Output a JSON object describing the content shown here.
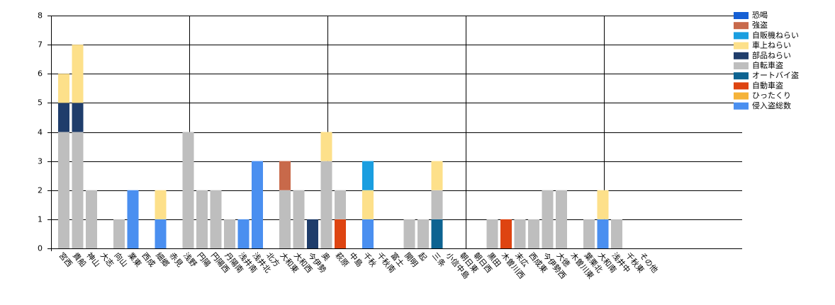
{
  "chart_data": {
    "type": "stacked-bar",
    "categories": [
      "宮西",
      "貴船",
      "神山",
      "大志",
      "向山",
      "業東",
      "西成",
      "細郷",
      "赤見",
      "浅野",
      "円陽",
      "円陽西",
      "丹陽南",
      "浅井南",
      "浅井北",
      "北方",
      "大和東",
      "大和西",
      "今伊勢",
      "奥",
      "萩原",
      "中島",
      "千秋",
      "千秋南",
      "富士",
      "開明",
      "起",
      "三条",
      "小信中島",
      "朝日東",
      "朝日西",
      "黒田",
      "木曽川西",
      "末広",
      "西成東",
      "今伊勢西",
      "大徳",
      "木曽川東",
      "葉栗北",
      "大和南",
      "浅井中",
      "千秋東",
      "その他"
    ],
    "series": [
      {
        "name": "恐喝",
        "color": "#1560d4",
        "values": [
          0,
          0,
          0,
          0,
          0,
          0,
          0,
          0,
          0,
          0,
          0,
          0,
          0,
          0,
          0,
          0,
          0,
          0,
          0,
          0,
          0,
          0,
          0,
          0,
          0,
          0,
          0,
          0,
          0,
          0,
          0,
          0,
          0,
          0,
          0,
          0,
          0,
          0,
          0,
          0,
          0,
          0,
          0
        ]
      },
      {
        "name": "強盗",
        "color": "#c8694a",
        "values": [
          0,
          0,
          0,
          0,
          0,
          0,
          0,
          0,
          0,
          0,
          0,
          0,
          0,
          0,
          0,
          0,
          1,
          0,
          0,
          0,
          0,
          0,
          0,
          0,
          0,
          0,
          0,
          0,
          0,
          0,
          0,
          0,
          0,
          0,
          0,
          0,
          0,
          0,
          0,
          0,
          0,
          0,
          0
        ]
      },
      {
        "name": "自販機ねらい",
        "color": "#1a9ee0",
        "values": [
          0,
          0,
          0,
          0,
          0,
          0,
          0,
          0,
          0,
          0,
          0,
          0,
          0,
          0,
          0,
          0,
          0,
          0,
          0,
          0,
          0,
          0,
          1,
          0,
          0,
          0,
          0,
          0,
          0,
          0,
          0,
          0,
          0,
          0,
          0,
          0,
          0,
          0,
          0,
          0,
          0,
          0,
          0
        ]
      },
      {
        "name": "車上ねらい",
        "color": "#fde08a",
        "values": [
          1,
          2,
          0,
          0,
          0,
          0,
          0,
          1,
          0,
          0,
          0,
          0,
          0,
          0,
          0,
          0,
          0,
          0,
          0,
          1,
          0,
          0,
          1,
          0,
          0,
          0,
          0,
          1,
          0,
          0,
          0,
          0,
          0,
          0,
          0,
          0,
          0,
          0,
          0,
          1,
          0,
          0,
          0
        ]
      },
      {
        "name": "部品ねらい",
        "color": "#1f3d6b",
        "values": [
          1,
          1,
          0,
          0,
          0,
          0,
          0,
          0,
          0,
          0,
          0,
          0,
          0,
          0,
          0,
          0,
          0,
          0,
          1,
          0,
          0,
          0,
          0,
          0,
          0,
          0,
          0,
          0,
          0,
          0,
          0,
          0,
          0,
          0,
          0,
          0,
          0,
          0,
          0,
          0,
          0,
          0,
          0
        ]
      },
      {
        "name": "自転車盗",
        "color": "#bebebe",
        "values": [
          4,
          4,
          2,
          0,
          1,
          0,
          0,
          0,
          0,
          4,
          2,
          2,
          1,
          0,
          0,
          0,
          2,
          2,
          0,
          3,
          1,
          0,
          0,
          0,
          0,
          1,
          1,
          1,
          0,
          0,
          0,
          1,
          0,
          1,
          1,
          2,
          2,
          0,
          1,
          0,
          1,
          0,
          0
        ]
      },
      {
        "name": "オートバイ盗",
        "color": "#0d6391",
        "values": [
          0,
          0,
          0,
          0,
          0,
          0,
          0,
          0,
          0,
          0,
          0,
          0,
          0,
          0,
          0,
          0,
          0,
          0,
          0,
          0,
          0,
          0,
          0,
          0,
          0,
          0,
          0,
          1,
          0,
          0,
          0,
          0,
          0,
          0,
          0,
          0,
          0,
          0,
          0,
          0,
          0,
          0,
          0
        ]
      },
      {
        "name": "自動車盗",
        "color": "#de4411",
        "values": [
          0,
          0,
          0,
          0,
          0,
          0,
          0,
          0,
          0,
          0,
          0,
          0,
          0,
          0,
          0,
          0,
          0,
          0,
          0,
          0,
          1,
          0,
          0,
          0,
          0,
          0,
          0,
          0,
          0,
          0,
          0,
          0,
          1,
          0,
          0,
          0,
          0,
          0,
          0,
          0,
          0,
          0,
          0
        ]
      },
      {
        "name": "ひったくり",
        "color": "#f5b33a",
        "values": [
          0,
          0,
          0,
          0,
          0,
          0,
          0,
          0,
          0,
          0,
          0,
          0,
          0,
          0,
          0,
          0,
          0,
          0,
          0,
          0,
          0,
          0,
          0,
          0,
          0,
          0,
          0,
          0,
          0,
          0,
          0,
          0,
          0,
          0,
          0,
          0,
          0,
          0,
          0,
          0,
          0,
          0,
          0
        ]
      },
      {
        "name": "侵入盗総数",
        "color": "#4a8ff0",
        "values": [
          0,
          0,
          0,
          0,
          0,
          2,
          0,
          1,
          0,
          0,
          0,
          0,
          0,
          1,
          3,
          0,
          0,
          0,
          0,
          0,
          0,
          0,
          1,
          0,
          0,
          0,
          0,
          0,
          0,
          0,
          0,
          0,
          0,
          0,
          0,
          0,
          0,
          0,
          0,
          1,
          0,
          0,
          0
        ]
      }
    ],
    "ylim": [
      0,
      8
    ],
    "yticks": [
      0,
      1,
      2,
      3,
      4,
      5,
      6,
      7,
      8
    ],
    "grid": true,
    "legend": "right"
  }
}
